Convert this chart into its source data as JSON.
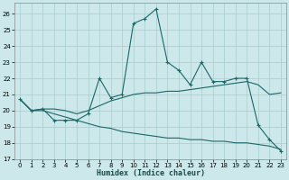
{
  "xlabel": "Humidex (Indice chaleur)",
  "background_color": "#cce8ea",
  "grid_color": "#a8cccc",
  "line_color": "#1a6868",
  "xlim": [
    -0.5,
    23.5
  ],
  "ylim": [
    17,
    26.7
  ],
  "yticks": [
    17,
    18,
    19,
    20,
    21,
    22,
    23,
    24,
    25,
    26
  ],
  "xticks": [
    0,
    1,
    2,
    3,
    4,
    5,
    6,
    7,
    8,
    9,
    10,
    11,
    12,
    13,
    14,
    15,
    16,
    17,
    18,
    19,
    20,
    21,
    22,
    23
  ],
  "line1_x": [
    0,
    1,
    2,
    3,
    4,
    5,
    6,
    7,
    8,
    9,
    10,
    11,
    12,
    13,
    14,
    15,
    16,
    17,
    18,
    19,
    20,
    21,
    22,
    23
  ],
  "line1_y": [
    20.7,
    20.0,
    20.1,
    19.4,
    19.4,
    19.4,
    19.8,
    22.0,
    20.8,
    21.0,
    25.4,
    25.7,
    26.3,
    23.0,
    22.5,
    21.6,
    23.0,
    21.8,
    21.8,
    22.0,
    22.0,
    19.1,
    18.2,
    17.5
  ],
  "line2_x": [
    0,
    1,
    2,
    3,
    4,
    5,
    6,
    7,
    8,
    9,
    10,
    11,
    12,
    13,
    14,
    15,
    16,
    17,
    18,
    19,
    20,
    21,
    22,
    23
  ],
  "line2_y": [
    20.7,
    20.0,
    20.1,
    20.1,
    20.0,
    19.8,
    20.0,
    20.3,
    20.6,
    20.8,
    21.0,
    21.1,
    21.1,
    21.2,
    21.2,
    21.3,
    21.4,
    21.5,
    21.6,
    21.7,
    21.8,
    21.6,
    21.0,
    21.1
  ],
  "line3_x": [
    0,
    1,
    2,
    3,
    4,
    5,
    6,
    7,
    8,
    9,
    10,
    11,
    12,
    13,
    14,
    15,
    16,
    17,
    18,
    19,
    20,
    21,
    22,
    23
  ],
  "line3_y": [
    20.7,
    20.0,
    20.0,
    19.8,
    19.6,
    19.4,
    19.2,
    19.0,
    18.9,
    18.7,
    18.6,
    18.5,
    18.4,
    18.3,
    18.3,
    18.2,
    18.2,
    18.1,
    18.1,
    18.0,
    18.0,
    17.9,
    17.8,
    17.6
  ]
}
